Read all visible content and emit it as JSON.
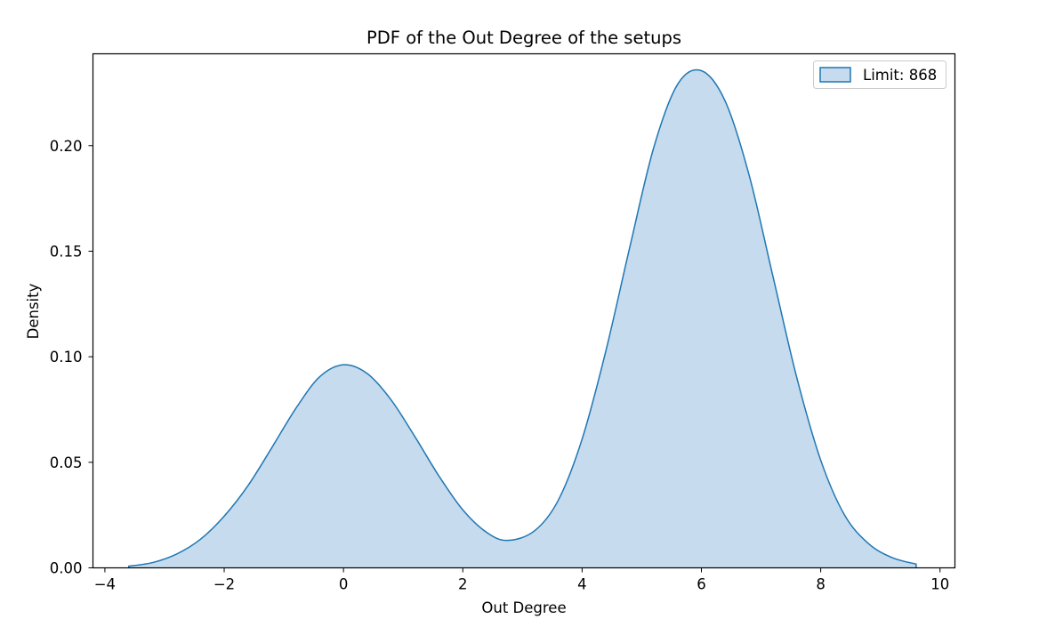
{
  "chart_data": {
    "type": "area",
    "title": "PDF of the Out Degree of the setups",
    "xlabel": "Out Degree",
    "ylabel": "Density",
    "xlim": [
      -4.2,
      10.25
    ],
    "ylim": [
      0,
      0.2435
    ],
    "xticks": [
      -4,
      -2,
      0,
      2,
      4,
      6,
      8,
      10
    ],
    "xtick_labels": [
      "−4",
      "−2",
      "0",
      "2",
      "4",
      "6",
      "8",
      "10"
    ],
    "yticks": [
      0.0,
      0.05,
      0.1,
      0.15,
      0.2
    ],
    "ytick_labels": [
      "0.00",
      "0.05",
      "0.10",
      "0.15",
      "0.20"
    ],
    "grid": false,
    "legend_position": "top-right",
    "series": [
      {
        "name": "Limit: 868",
        "line_color": "#1f77b4",
        "fill_color": "#c6dbed",
        "x": [
          -3.6,
          -3.2,
          -2.8,
          -2.4,
          -2.0,
          -1.6,
          -1.2,
          -0.8,
          -0.4,
          0.0,
          0.4,
          0.8,
          1.2,
          1.6,
          2.0,
          2.4,
          2.75,
          3.2,
          3.6,
          4.0,
          4.4,
          4.8,
          5.2,
          5.6,
          6.0,
          6.4,
          6.8,
          7.2,
          7.6,
          8.0,
          8.4,
          8.8,
          9.2,
          9.6
        ],
        "y": [
          0.0008,
          0.0025,
          0.0065,
          0.0135,
          0.0245,
          0.039,
          0.057,
          0.0755,
          0.0905,
          0.0962,
          0.092,
          0.0795,
          0.062,
          0.0435,
          0.0275,
          0.0168,
          0.013,
          0.0175,
          0.032,
          0.061,
          0.103,
          0.152,
          0.199,
          0.229,
          0.2355,
          0.221,
          0.186,
          0.138,
          0.09,
          0.051,
          0.025,
          0.0115,
          0.0048,
          0.0018
        ]
      }
    ]
  }
}
